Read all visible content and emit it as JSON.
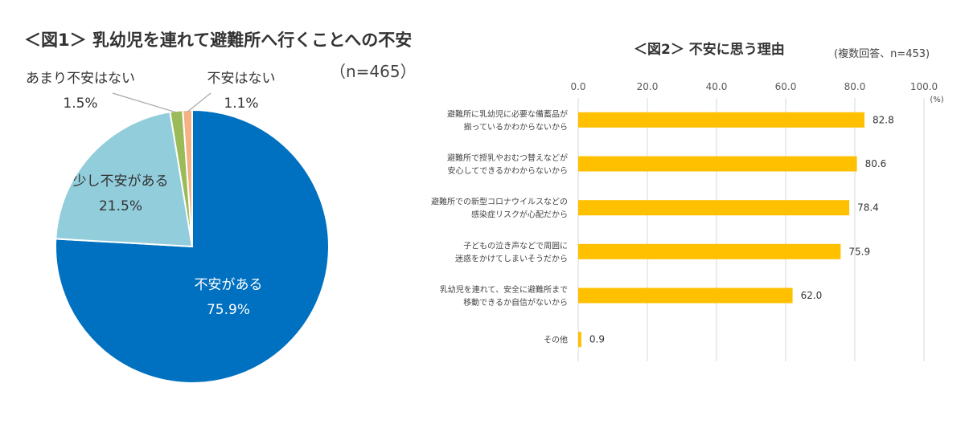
{
  "figure1": {
    "title": "＜図1＞ 乳幼児を連れて避難所へ行くことへの不安",
    "sample": "（n=465）"
  },
  "figure2": {
    "title": "＜図2＞ 不安に思う理由",
    "sample": "(複数回答、n=453)",
    "unit": "(%)"
  },
  "chart_data": [
    {
      "type": "pie",
      "title": "＜図1＞ 乳幼児を連れて避難所へ行くことへの不安",
      "slices": [
        {
          "label": "不安がある",
          "value": 75.9,
          "value_text": "75.9%",
          "color": "#0070C0"
        },
        {
          "label": "少し不安がある",
          "value": 21.5,
          "value_text": "21.5%",
          "color": "#92CDDC"
        },
        {
          "label": "あまり不安はない",
          "value": 1.5,
          "value_text": "1.5%",
          "color": "#9BBB59"
        },
        {
          "label": "不安はない",
          "value": 1.1,
          "value_text": "1.1%",
          "color": "#F4B183"
        }
      ],
      "start": "12 o'clock, clockwise"
    },
    {
      "type": "bar",
      "orientation": "horizontal",
      "title": "＜図2＞ 不安に思う理由",
      "xlim": [
        0,
        100
      ],
      "ticks": [
        "0.0",
        "20.0",
        "40.0",
        "60.0",
        "80.0",
        "100.0"
      ],
      "grid": true,
      "color": "#FFC000",
      "categories": [
        [
          "避難所に乳幼児に必要な備蓄品が",
          "揃っているかわからないから"
        ],
        [
          "避難所で授乳やおむつ替えなどが",
          "安心してできるかわからないから"
        ],
        [
          "避難所での新型コロナウイルスなどの",
          "感染症リスクが心配だから"
        ],
        [
          "子どもの泣き声などで周囲に",
          "迷惑をかけてしまいそうだから"
        ],
        [
          "乳幼児を連れて、安全に避難所まで",
          "移動できるか自信がないから"
        ],
        [
          "その他"
        ]
      ],
      "values": [
        82.8,
        80.6,
        78.4,
        75.9,
        62.0,
        0.9
      ],
      "value_labels": [
        "82.8",
        "80.6",
        "78.4",
        "75.9",
        "62.0",
        "0.9"
      ]
    }
  ]
}
